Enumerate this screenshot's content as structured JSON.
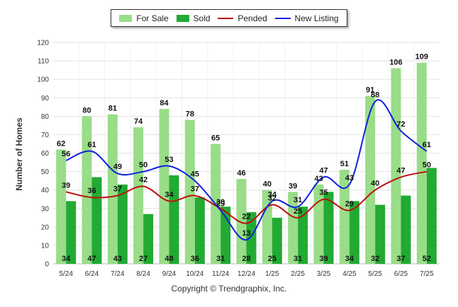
{
  "chart_data": {
    "type": "bar",
    "title": "",
    "xlabel": "",
    "ylabel": "Number of Homes",
    "ylim": [
      0,
      120
    ],
    "yticks": [
      0,
      10,
      20,
      30,
      40,
      50,
      60,
      70,
      80,
      90,
      100,
      110,
      120
    ],
    "grid": true,
    "legend_position": "top-center",
    "categories": [
      "5/24",
      "6/24",
      "7/24",
      "8/24",
      "9/24",
      "10/24",
      "11/24",
      "12/24",
      "1/25",
      "2/25",
      "3/25",
      "4/25",
      "5/25",
      "6/25",
      "7/25"
    ],
    "series": [
      {
        "name": "For Sale",
        "kind": "bar",
        "color": "#99dd88",
        "values": [
          62,
          80,
          81,
          74,
          84,
          78,
          65,
          46,
          40,
          39,
          43,
          51,
          91,
          106,
          109
        ]
      },
      {
        "name": "Sold",
        "kind": "bar",
        "color": "#22aa33",
        "values": [
          34,
          47,
          43,
          27,
          48,
          36,
          31,
          28,
          25,
          31,
          39,
          34,
          32,
          37,
          52
        ]
      },
      {
        "name": "Pended",
        "kind": "line",
        "color": "#bb1111",
        "values": [
          39,
          36,
          37,
          42,
          34,
          37,
          30,
          22,
          32,
          25,
          35,
          29,
          40,
          47,
          50
        ]
      },
      {
        "name": "New Listing",
        "kind": "line",
        "color": "#1122dd",
        "values": [
          56,
          61,
          49,
          50,
          53,
          45,
          29,
          13,
          34,
          31,
          47,
          43,
          88,
          72,
          61
        ]
      }
    ]
  },
  "footer": {
    "copyright": "Copyright © Trendgraphix, Inc."
  }
}
